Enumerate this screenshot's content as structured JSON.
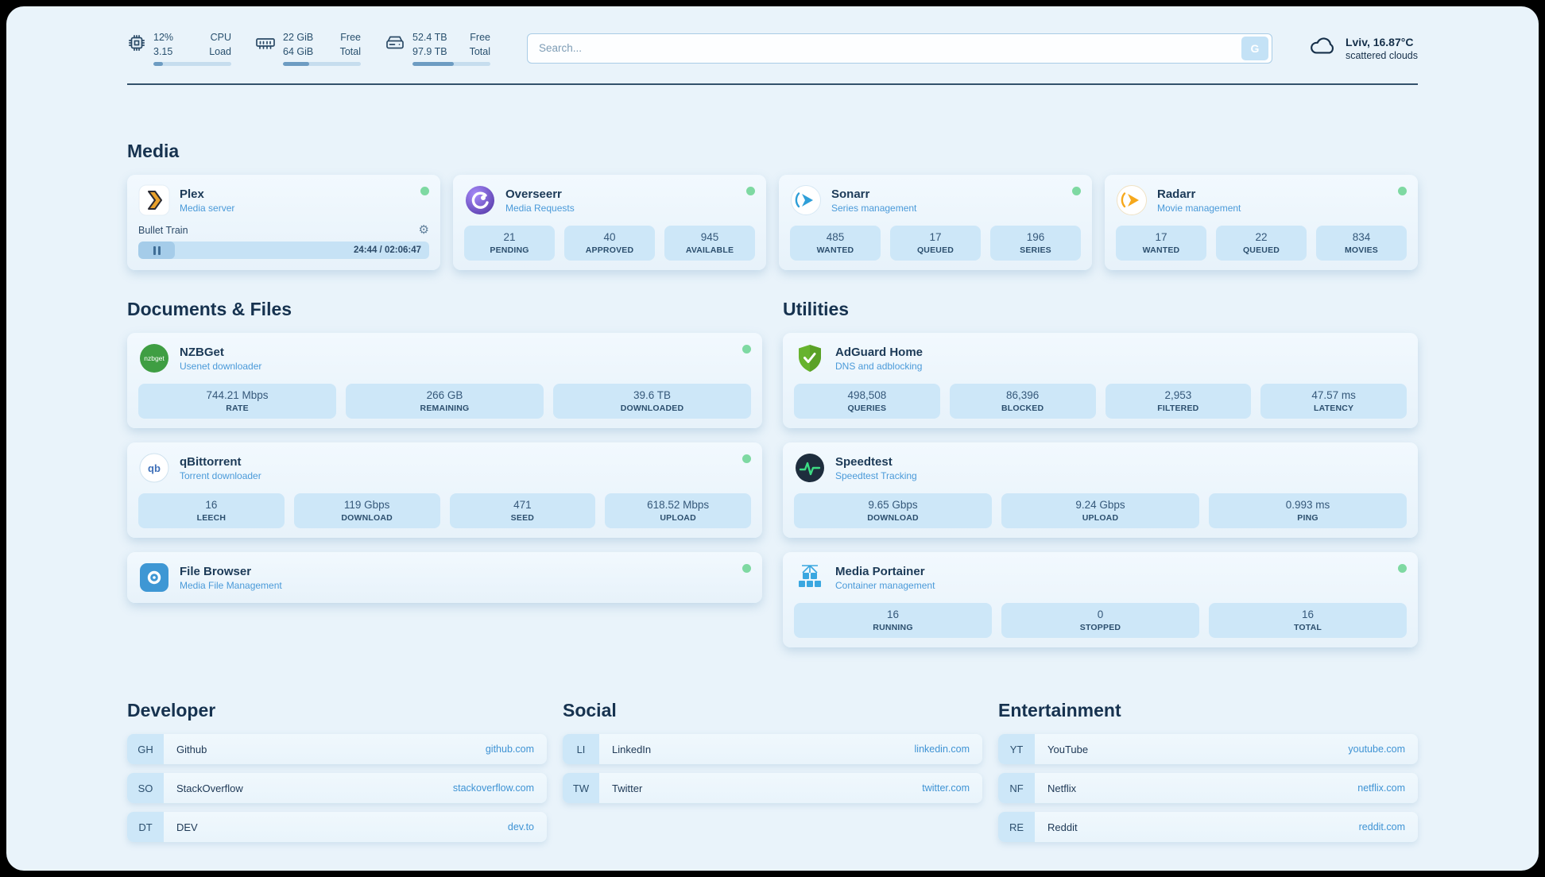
{
  "header": {
    "stats": [
      {
        "v1": "12%",
        "v2": "3.15",
        "l1": "CPU",
        "l2": "Load",
        "progress": 12
      },
      {
        "v1": "22 GiB",
        "v2": "64 GiB",
        "l1": "Free",
        "l2": "Total",
        "progress": 34
      },
      {
        "v1": "52.4 TB",
        "v2": "97.9 TB",
        "l1": "Free",
        "l2": "Total",
        "progress": 53
      }
    ],
    "search": {
      "placeholder": "Search...",
      "button_label": "G"
    },
    "weather": {
      "location": "Lviv, 16.87°C",
      "condition": "scattered clouds"
    }
  },
  "sections": {
    "media": {
      "title": "Media",
      "plex": {
        "title": "Plex",
        "subtitle": "Media server",
        "track": "Bullet Train",
        "time": "24:44 / 02:06:47"
      },
      "overseerr": {
        "title": "Overseerr",
        "subtitle": "Media Requests",
        "stats": [
          {
            "value": "21",
            "label": "PENDING"
          },
          {
            "value": "40",
            "label": "APPROVED"
          },
          {
            "value": "945",
            "label": "AVAILABLE"
          }
        ]
      },
      "sonarr": {
        "title": "Sonarr",
        "subtitle": "Series management",
        "stats": [
          {
            "value": "485",
            "label": "WANTED"
          },
          {
            "value": "17",
            "label": "QUEUED"
          },
          {
            "value": "196",
            "label": "SERIES"
          }
        ]
      },
      "radarr": {
        "title": "Radarr",
        "subtitle": "Movie management",
        "stats": [
          {
            "value": "17",
            "label": "WANTED"
          },
          {
            "value": "22",
            "label": "QUEUED"
          },
          {
            "value": "834",
            "label": "MOVIES"
          }
        ]
      }
    },
    "documents": {
      "title": "Documents & Files",
      "nzbget": {
        "title": "NZBGet",
        "subtitle": "Usenet downloader",
        "stats": [
          {
            "value": "744.21 Mbps",
            "label": "RATE"
          },
          {
            "value": "266 GB",
            "label": "REMAINING"
          },
          {
            "value": "39.6 TB",
            "label": "DOWNLOADED"
          }
        ]
      },
      "qbittorrent": {
        "title": "qBittorrent",
        "subtitle": "Torrent downloader",
        "stats": [
          {
            "value": "16",
            "label": "LEECH"
          },
          {
            "value": "119 Gbps",
            "label": "DOWNLOAD"
          },
          {
            "value": "471",
            "label": "SEED"
          },
          {
            "value": "618.52 Mbps",
            "label": "UPLOAD"
          }
        ]
      },
      "filebrowser": {
        "title": "File Browser",
        "subtitle": "Media File Management"
      }
    },
    "utilities": {
      "title": "Utilities",
      "adguard": {
        "title": "AdGuard Home",
        "subtitle": "DNS and adblocking",
        "stats": [
          {
            "value": "498,508",
            "label": "QUERIES"
          },
          {
            "value": "86,396",
            "label": "BLOCKED"
          },
          {
            "value": "2,953",
            "label": "FILTERED"
          },
          {
            "value": "47.57 ms",
            "label": "LATENCY"
          }
        ]
      },
      "speedtest": {
        "title": "Speedtest",
        "subtitle": "Speedtest Tracking",
        "stats": [
          {
            "value": "9.65 Gbps",
            "label": "DOWNLOAD"
          },
          {
            "value": "9.24 Gbps",
            "label": "UPLOAD"
          },
          {
            "value": "0.993 ms",
            "label": "PING"
          }
        ]
      },
      "portainer": {
        "title": "Media Portainer",
        "subtitle": "Container management",
        "stats": [
          {
            "value": "16",
            "label": "RUNNING"
          },
          {
            "value": "0",
            "label": "STOPPED"
          },
          {
            "value": "16",
            "label": "TOTAL"
          }
        ]
      }
    }
  },
  "bookmarks": [
    {
      "title": "Developer",
      "items": [
        {
          "abbr": "GH",
          "name": "Github",
          "url": "github.com"
        },
        {
          "abbr": "SO",
          "name": "StackOverflow",
          "url": "stackoverflow.com"
        },
        {
          "abbr": "DT",
          "name": "DEV",
          "url": "dev.to"
        }
      ]
    },
    {
      "title": "Social",
      "items": [
        {
          "abbr": "LI",
          "name": "LinkedIn",
          "url": "linkedin.com"
        },
        {
          "abbr": "TW",
          "name": "Twitter",
          "url": "twitter.com"
        }
      ]
    },
    {
      "title": "Entertainment",
      "items": [
        {
          "abbr": "YT",
          "name": "YouTube",
          "url": "youtube.com"
        },
        {
          "abbr": "NF",
          "name": "Netflix",
          "url": "netflix.com"
        },
        {
          "abbr": "RE",
          "name": "Reddit",
          "url": "reddit.com"
        }
      ]
    }
  ],
  "icons": {
    "nzbget_text": "nzbget",
    "qbittorrent_text": "qb"
  },
  "colors": {
    "accent": "#3f93d4",
    "status_ok": "#7ed9a2",
    "stat_box": "#cde7f8",
    "background": "#e9f3fa"
  }
}
